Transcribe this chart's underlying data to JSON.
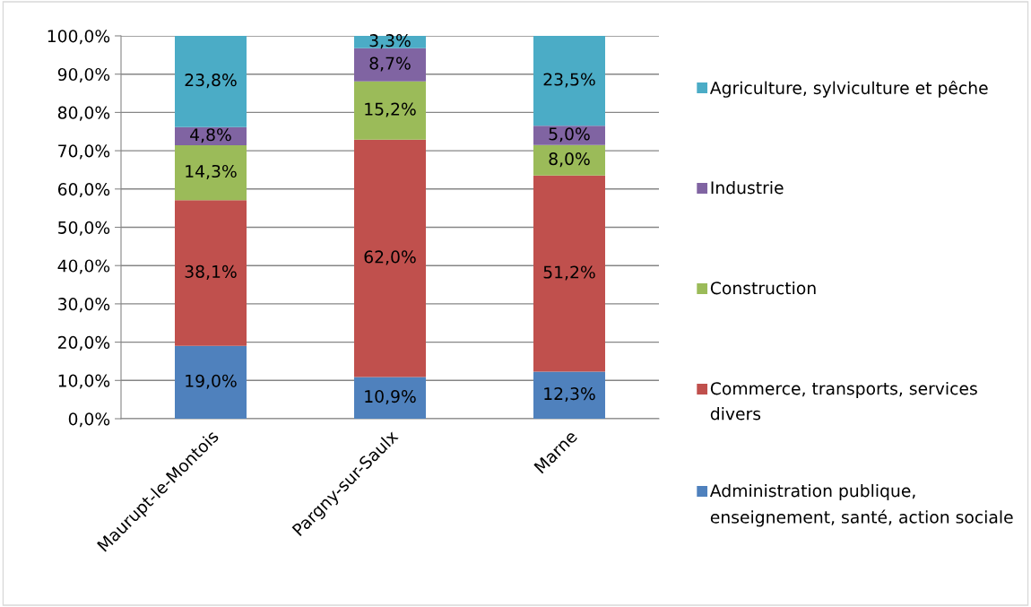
{
  "chart_data": {
    "type": "bar",
    "stacked": true,
    "categories": [
      "Maurupt-le-Montois",
      "Pargny-sur-Saulx",
      "Marne"
    ],
    "series": [
      {
        "name": "Administration publique, enseignement, santé, action sociale",
        "color": "#4f81bd",
        "values": [
          19.0,
          10.9,
          12.3
        ],
        "value_labels": [
          "19,0%",
          "10,9%",
          "12,3%"
        ]
      },
      {
        "name": "Commerce, transports, services divers",
        "color": "#c0504d",
        "values": [
          38.1,
          62.0,
          51.2
        ],
        "value_labels": [
          "38,1%",
          "62,0%",
          "51,2%"
        ]
      },
      {
        "name": "Construction",
        "color": "#9bbb59",
        "values": [
          14.3,
          15.2,
          8.0
        ],
        "value_labels": [
          "14,3%",
          "15,2%",
          "8,0%"
        ]
      },
      {
        "name": "Industrie",
        "color": "#8064a2",
        "values": [
          4.8,
          8.7,
          5.0
        ],
        "value_labels": [
          "4,8%",
          "8,7%",
          "5,0%"
        ]
      },
      {
        "name": "Agriculture, sylviculture et pêche",
        "color": "#4bacc6",
        "values": [
          23.8,
          3.3,
          23.5
        ],
        "value_labels": [
          "23,8%",
          "3,3%",
          "23,5%"
        ]
      }
    ],
    "ylim": [
      0,
      100
    ],
    "yticks": [
      {
        "value": 0,
        "label": "0,0%"
      },
      {
        "value": 10,
        "label": "10,0%"
      },
      {
        "value": 20,
        "label": "20,0%"
      },
      {
        "value": 30,
        "label": "30,0%"
      },
      {
        "value": 40,
        "label": "40,0%"
      },
      {
        "value": 50,
        "label": "50,0%"
      },
      {
        "value": 60,
        "label": "60,0%"
      },
      {
        "value": 70,
        "label": "70,0%"
      },
      {
        "value": 80,
        "label": "80,0%"
      },
      {
        "value": 90,
        "label": "90,0%"
      },
      {
        "value": 100,
        "label": "100,0%"
      }
    ],
    "grid": "y",
    "legend": "right"
  }
}
